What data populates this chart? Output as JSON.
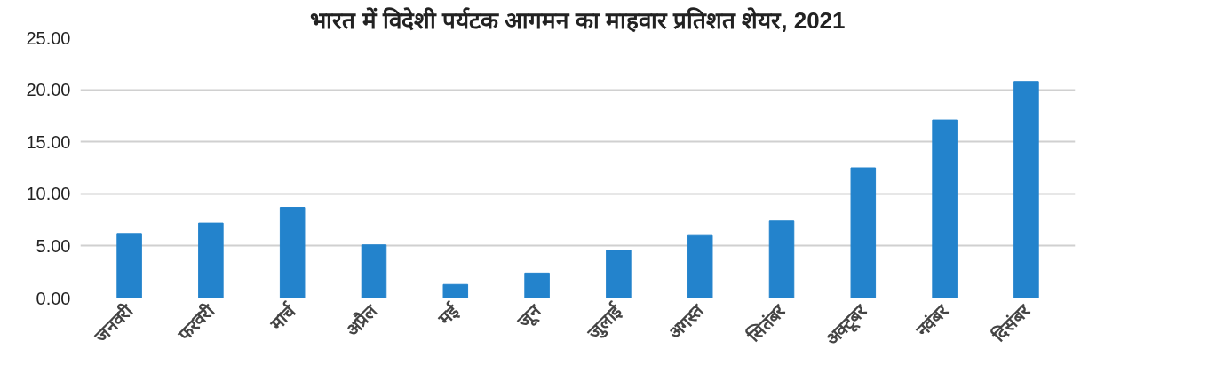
{
  "chart_data": {
    "type": "bar",
    "title": "भारत में विदेशी पर्यटक आगमन का माहवार प्रतिशत शेयर, 2021",
    "categories": [
      "जनवरी",
      "फरवरी",
      "मार्च",
      "अप्रैल",
      "मई",
      "जून",
      "जुलाई",
      "अगस्त",
      "सितंबर",
      "अक्टूबर",
      "नवंबर",
      "दिसंबर"
    ],
    "values": [
      6.2,
      7.2,
      8.7,
      5.1,
      1.3,
      2.4,
      4.6,
      6.0,
      7.4,
      12.5,
      17.1,
      20.8
    ],
    "color": "#2383cc",
    "ylim": [
      0,
      25
    ],
    "yticks": [
      {
        "value": 0,
        "label": "0.00"
      },
      {
        "value": 5,
        "label": "5.00"
      },
      {
        "value": 10,
        "label": "10.00"
      },
      {
        "value": 15,
        "label": "15.00"
      },
      {
        "value": 20,
        "label": "20.00"
      },
      {
        "value": 25,
        "label": "25.00"
      }
    ],
    "grid": "y"
  }
}
